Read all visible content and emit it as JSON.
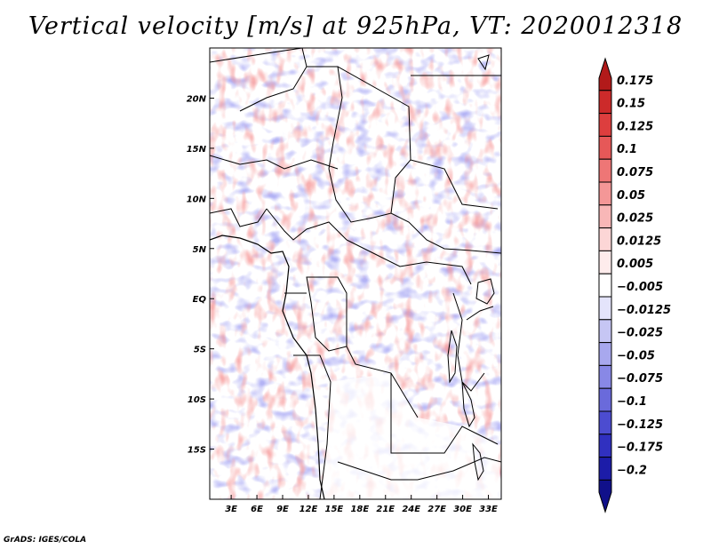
{
  "title": "Vertical velocity [m/s] at 925hPa, VT: 2020012318",
  "credit": "GrADS: IGES/COLA",
  "axes": {
    "lat_labels": [
      "20N",
      "15N",
      "10N",
      "5N",
      "EQ",
      "5S",
      "10S",
      "15S"
    ],
    "lat_values": [
      20,
      15,
      10,
      5,
      0,
      -5,
      -10,
      -15
    ],
    "lon_labels": [
      "3E",
      "6E",
      "9E",
      "12E",
      "15E",
      "18E",
      "21E",
      "24E",
      "27E",
      "30E",
      "33E"
    ],
    "lon_values": [
      3,
      6,
      9,
      12,
      15,
      18,
      21,
      24,
      27,
      30,
      33
    ],
    "lon_range": [
      0.5,
      34.5
    ],
    "lat_range": [
      -20,
      25
    ]
  },
  "colorbar": {
    "levels": [
      "0.175",
      "0.15",
      "0.125",
      "0.1",
      "0.075",
      "0.05",
      "0.025",
      "0.0125",
      "0.005",
      "-0.005",
      "-0.0125",
      "-0.025",
      "-0.05",
      "-0.075",
      "-0.1",
      "-0.125",
      "-0.175",
      "-0.2"
    ],
    "colors": [
      "#b21a1a",
      "#cc2a2a",
      "#dd3e3e",
      "#e65858",
      "#ee7676",
      "#f49797",
      "#f8b7b7",
      "#fcd6d6",
      "#feecec",
      "#ffffff",
      "#e4e4fb",
      "#c6c6f4",
      "#a8a8ee",
      "#8888e6",
      "#6a6adb",
      "#4c4cd0",
      "#3030c0",
      "#1c1ca8",
      "#10108a"
    ]
  },
  "colors": {
    "positive": "#e85050",
    "negative": "#5050e0",
    "border": "#000000"
  }
}
